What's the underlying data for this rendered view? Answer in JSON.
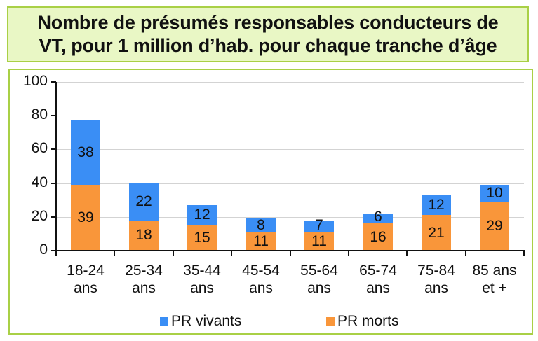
{
  "title": {
    "line1": "Nombre de présumés responsables conducteurs de",
    "line2": "VT, pour 1 million d’hab. pour chaque tranche d’âge"
  },
  "colors": {
    "vivants": "#3a8ef5",
    "morts": "#f9963a",
    "frame": "#a9d046",
    "title_bg": "#e9f7c5"
  },
  "chart_data": {
    "type": "bar",
    "stacked": true,
    "title": "Nombre de présumés responsables conducteurs de VT, pour 1 million d’hab. pour chaque tranche d’âge",
    "categories": [
      "18-24 ans",
      "25-34 ans",
      "35-44 ans",
      "45-54 ans",
      "55-64 ans",
      "65-74 ans",
      "75-84 ans",
      "85 ans et +"
    ],
    "category_lines": [
      [
        "18-24",
        "ans"
      ],
      [
        "25-34",
        "ans"
      ],
      [
        "35-44",
        "ans"
      ],
      [
        "45-54",
        "ans"
      ],
      [
        "55-64",
        "ans"
      ],
      [
        "65-74",
        "ans"
      ],
      [
        "75-84",
        "ans"
      ],
      [
        "85 ans",
        "et +"
      ]
    ],
    "series": [
      {
        "name": "PR morts",
        "values": [
          39,
          18,
          15,
          11,
          11,
          16,
          21,
          29
        ]
      },
      {
        "name": "PR vivants",
        "values": [
          38,
          22,
          12,
          8,
          7,
          6,
          12,
          10
        ]
      }
    ],
    "xlabel": "",
    "ylabel": "",
    "ylim": [
      0,
      100
    ],
    "yticks": [
      "0",
      "20",
      "40",
      "60",
      "80",
      "100"
    ],
    "grid": true,
    "legend_position": "bottom",
    "legend": [
      "PR vivants",
      "PR morts"
    ]
  }
}
